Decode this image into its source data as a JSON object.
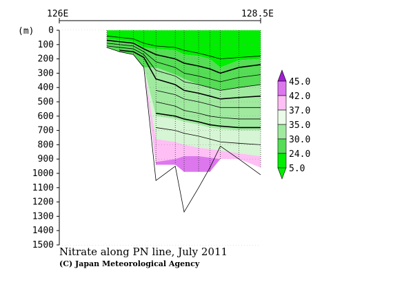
{
  "chart_data": {
    "type": "contour",
    "title": "Nitrate along PN line, July 2011",
    "credit": "(C) Japan Meteorological Agency",
    "x_axis": {
      "labels": [
        "126E",
        "128.5E"
      ],
      "range": [
        126,
        128.5
      ]
    },
    "y_axis": {
      "unit_label": "(m)",
      "ticks": [
        0,
        100,
        200,
        300,
        400,
        500,
        600,
        700,
        800,
        900,
        1000,
        1100,
        1200,
        1300,
        1400,
        1500
      ],
      "range": [
        0,
        1500
      ],
      "inverted": true
    },
    "grid": "dotted",
    "stations_lon": [
      126.59,
      126.75,
      126.92,
      127.05,
      127.2,
      127.44,
      127.55,
      127.73,
      127.87,
      128.0,
      128.23,
      128.5
    ],
    "bottom_depth_m": [
      120,
      150,
      170,
      260,
      1050,
      950,
      1270,
      1100,
      960,
      810,
      900,
      1010
    ],
    "contour_levels": [
      5.0,
      24.0,
      30.0,
      35.0,
      37.0,
      42.0,
      45.0
    ],
    "legend": {
      "labels": [
        "45.0",
        "42.0",
        "37.0",
        "35.0",
        "30.0",
        "24.0",
        "5.0"
      ],
      "colors": [
        "#a020d0",
        "#dd77ee",
        "#ffbff5",
        "#eafbe8",
        "#a0eaa0",
        "#55dd55",
        "#00ee00"
      ]
    },
    "fill_colors": {
      "surface": "#00ee00",
      "mid": "#55dd55",
      "deep": "#a0eaa0",
      "deeper": "#d6f5d4",
      "high": "#ffbff5",
      "highest": "#dd77ee"
    }
  }
}
